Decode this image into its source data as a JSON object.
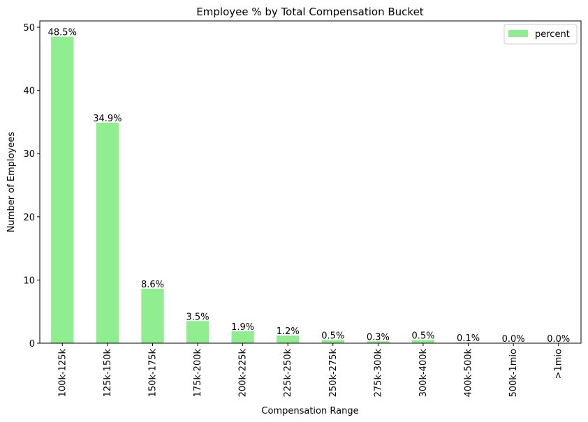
{
  "chart_data": {
    "type": "bar",
    "title": "Employee % by Total Compensation Bucket",
    "xlabel": "Compensation Range",
    "ylabel": "Number of Employees",
    "ylim": [
      0,
      51
    ],
    "yticks": [
      0,
      10,
      20,
      30,
      40,
      50
    ],
    "grid": false,
    "legend_position": "top-right",
    "categories": [
      "100k-125k",
      "125k-150k",
      "150k-175k",
      "175k-200k",
      "200k-225k",
      "225k-250k",
      "250k-275k",
      "275k-300k",
      "300k-400k",
      "400k-500k",
      "500k-1mio",
      ">1mio"
    ],
    "series": [
      {
        "name": "percent",
        "color": "#90ee90",
        "values": [
          48.5,
          34.9,
          8.6,
          3.5,
          1.9,
          1.2,
          0.5,
          0.3,
          0.5,
          0.1,
          0.0,
          0.0
        ],
        "labels": [
          "48.5%",
          "34.9%",
          "8.6%",
          "3.5%",
          "1.9%",
          "1.2%",
          "0.5%",
          "0.3%",
          "0.5%",
          "0.1%",
          "0.0%",
          "0.0%"
        ]
      }
    ]
  }
}
